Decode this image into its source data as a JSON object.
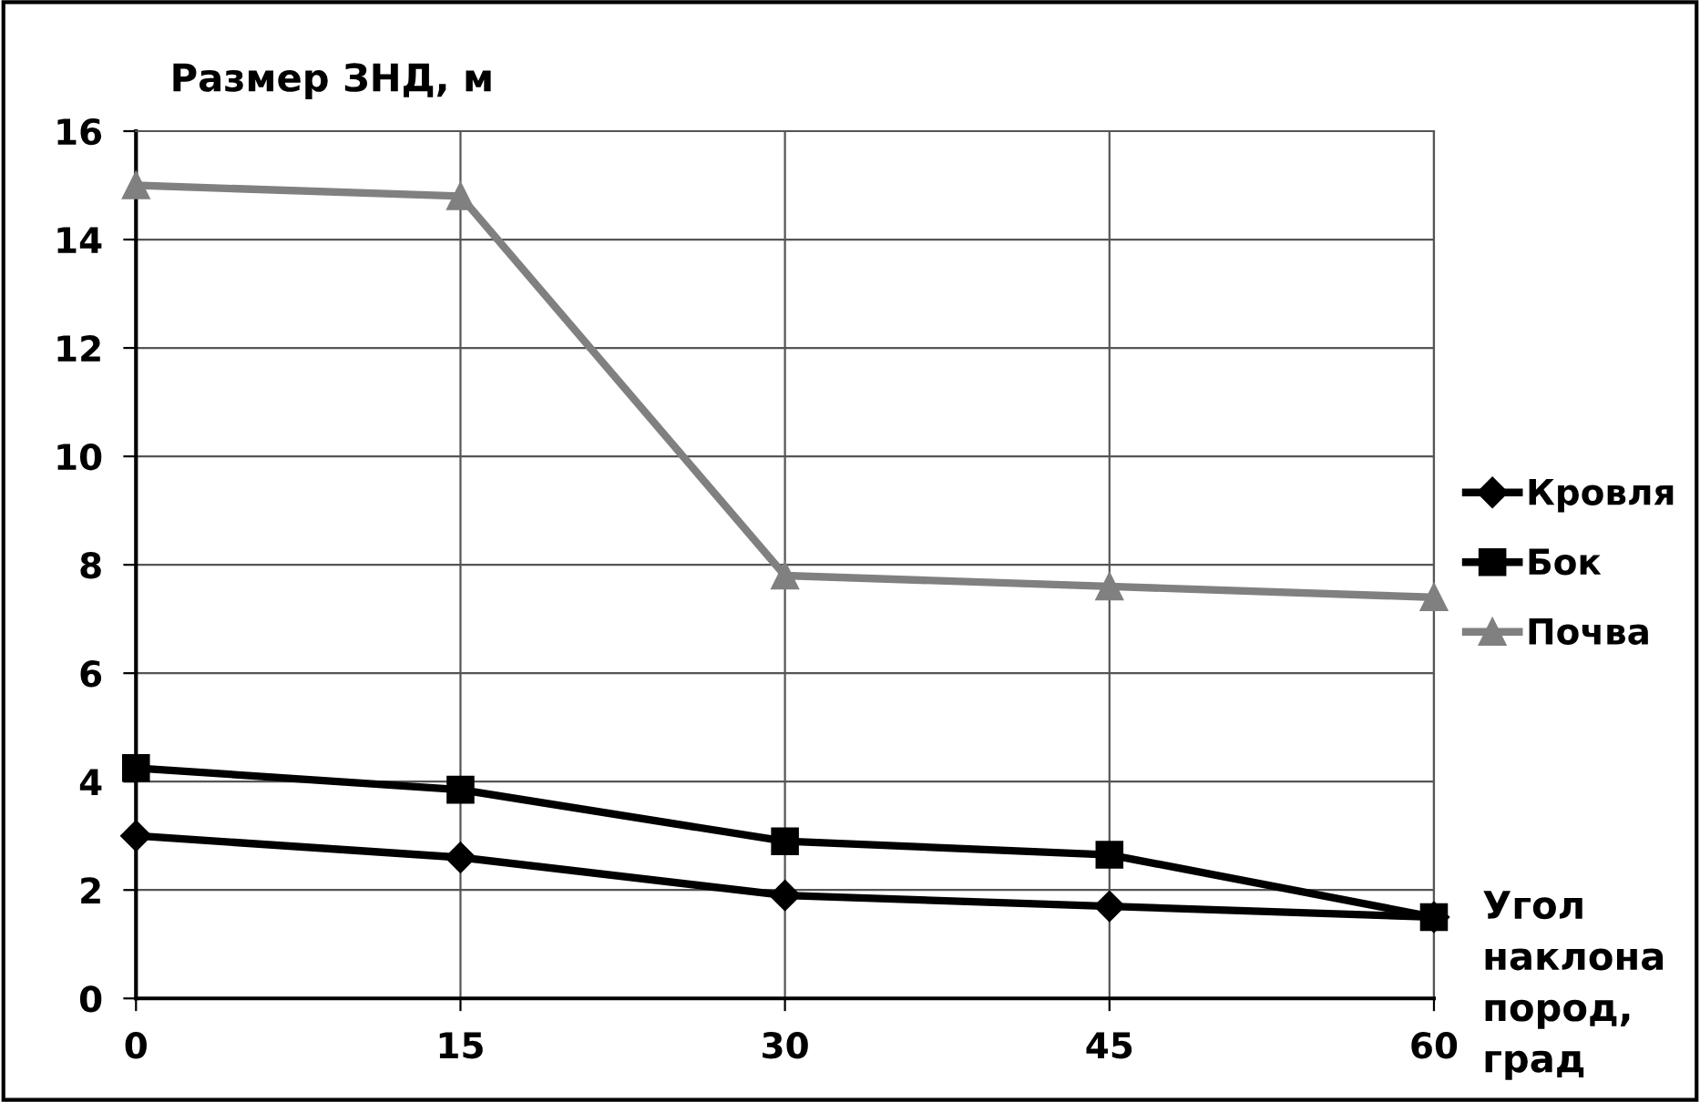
{
  "chart_data": {
    "type": "line",
    "ylabel": "Размер ЗНД, м",
    "xlabel": "Угол\nнаклона\nпород,\nград",
    "x": [
      0,
      15,
      30,
      45,
      60
    ],
    "xlim": [
      0,
      60
    ],
    "xticks": [
      0,
      15,
      30,
      45,
      60
    ],
    "ylim": [
      0,
      16
    ],
    "yticks": [
      0,
      2,
      4,
      6,
      8,
      10,
      12,
      14,
      16
    ],
    "grid": true,
    "legend": "right",
    "line_style": "solid",
    "series": [
      {
        "name": "Кровля",
        "color": "#000000",
        "marker": "diamond",
        "values": [
          3.0,
          2.6,
          1.9,
          1.7,
          1.5
        ]
      },
      {
        "name": "Бок",
        "color": "#000000",
        "marker": "square",
        "values": [
          4.25,
          3.85,
          2.9,
          2.65,
          1.5
        ]
      },
      {
        "name": "Почва",
        "color": "#808080",
        "marker": "triangle",
        "values": [
          15.0,
          14.8,
          7.8,
          7.6,
          7.4
        ]
      }
    ]
  }
}
